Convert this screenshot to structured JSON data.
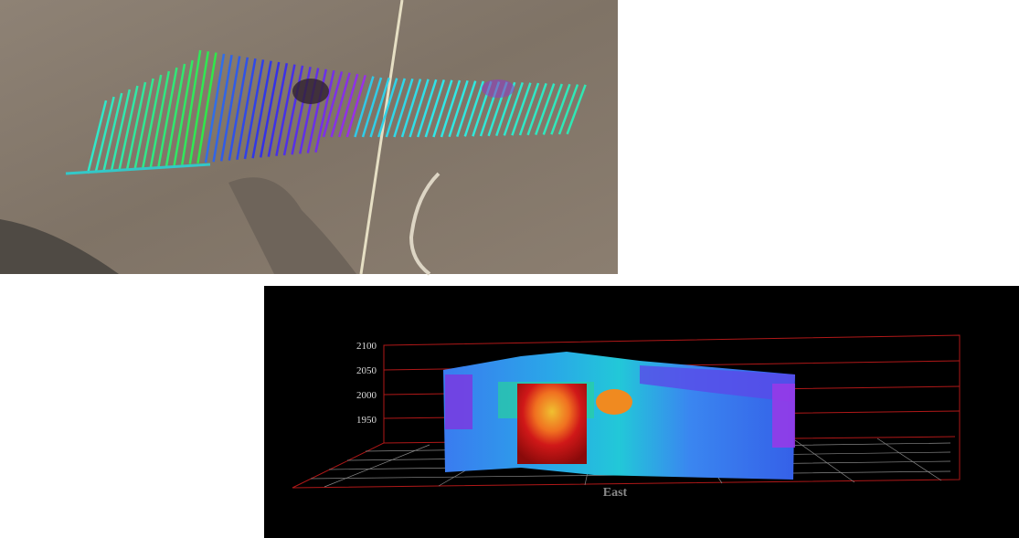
{
  "model_view": {
    "elevation_labels": [
      "2100",
      "2050",
      "2000",
      "1950"
    ],
    "axis_title": "East"
  }
}
